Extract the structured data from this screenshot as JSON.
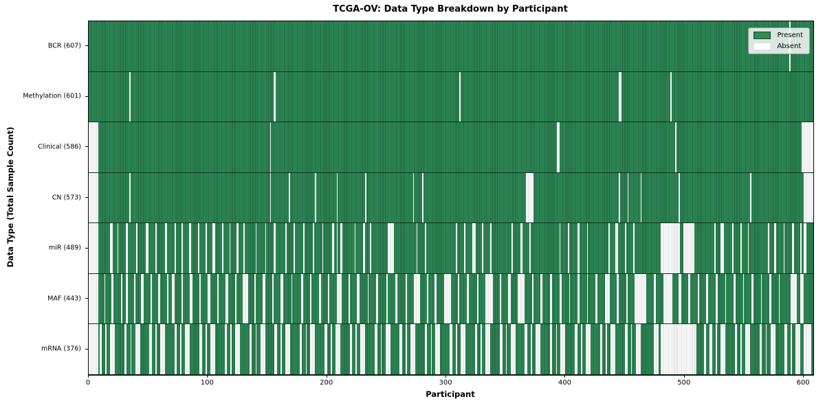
{
  "chart_data": {
    "type": "heatmap",
    "title": "TCGA-OV: Data Type Breakdown by Participant",
    "xlabel": "Participant",
    "ylabel": "Data Type (Total Sample Count)",
    "x_ticks": [
      0,
      100,
      200,
      300,
      400,
      500,
      600
    ],
    "x_max": 608,
    "total_participants": 608,
    "grid": false,
    "legend": {
      "position": "upper right",
      "entries": [
        {
          "label": "Present",
          "color": "#2e8b57"
        },
        {
          "label": "Absent",
          "color": "#ffffff"
        }
      ]
    },
    "colors": {
      "present": "#2e8b57",
      "present_edge": "#20603f",
      "absent": "#ffffff",
      "absent_edge": "#d7d7d7"
    },
    "rows": [
      {
        "label": "BCR (607)",
        "name": "BCR",
        "present_count": 607,
        "absent_count": 1,
        "absent_segments": [
          [
            588,
            589
          ]
        ]
      },
      {
        "label": "Methylation (601)",
        "name": "Methylation",
        "present_count": 601,
        "absent_count": 7,
        "absent_segments": [
          [
            34,
            35
          ],
          [
            155,
            157
          ],
          [
            311,
            312
          ],
          [
            445,
            447
          ],
          [
            488,
            489
          ]
        ]
      },
      {
        "label": "Clinical (586)",
        "name": "Clinical",
        "present_count": 586,
        "absent_count": 22,
        "absent_segments": [
          [
            0,
            8
          ],
          [
            152,
            153
          ],
          [
            393,
            395
          ],
          [
            492,
            493
          ],
          [
            598,
            608
          ]
        ]
      },
      {
        "label": "CN (573)",
        "name": "CN",
        "present_count": 573,
        "absent_count": 35,
        "absent_segments": [
          [
            0,
            8
          ],
          [
            34,
            35
          ],
          [
            152,
            153
          ],
          [
            168,
            169
          ],
          [
            190,
            191
          ],
          [
            208,
            209
          ],
          [
            232,
            233
          ],
          [
            272,
            273
          ],
          [
            280,
            281
          ],
          [
            367,
            373
          ],
          [
            445,
            446
          ],
          [
            452,
            453
          ],
          [
            463,
            464
          ],
          [
            495,
            496
          ],
          [
            555,
            556
          ],
          [
            600,
            608
          ]
        ]
      },
      {
        "label": "miR (489)",
        "name": "miR",
        "present_count": 489,
        "absent_count": 119,
        "absent_segments": [
          [
            0,
            8
          ],
          [
            18,
            20
          ],
          [
            24,
            25
          ],
          [
            31,
            33
          ],
          [
            40,
            41
          ],
          [
            48,
            50
          ],
          [
            56,
            57
          ],
          [
            64,
            66
          ],
          [
            72,
            73
          ],
          [
            78,
            79
          ],
          [
            84,
            86
          ],
          [
            92,
            93
          ],
          [
            98,
            99
          ],
          [
            104,
            106
          ],
          [
            112,
            113
          ],
          [
            118,
            119
          ],
          [
            124,
            126
          ],
          [
            130,
            131
          ],
          [
            140,
            141
          ],
          [
            148,
            149
          ],
          [
            155,
            157
          ],
          [
            165,
            166
          ],
          [
            172,
            173
          ],
          [
            180,
            181
          ],
          [
            188,
            189
          ],
          [
            196,
            197
          ],
          [
            204,
            206
          ],
          [
            208,
            209
          ],
          [
            211,
            213
          ],
          [
            223,
            224
          ],
          [
            230,
            232
          ],
          [
            236,
            237
          ],
          [
            251,
            256
          ],
          [
            275,
            276
          ],
          [
            282,
            283
          ],
          [
            308,
            309
          ],
          [
            315,
            316
          ],
          [
            322,
            325
          ],
          [
            330,
            331
          ],
          [
            337,
            338
          ],
          [
            355,
            356
          ],
          [
            362,
            364
          ],
          [
            370,
            371
          ],
          [
            395,
            396
          ],
          [
            402,
            403
          ],
          [
            410,
            412
          ],
          [
            418,
            419
          ],
          [
            436,
            437
          ],
          [
            442,
            444
          ],
          [
            450,
            451
          ],
          [
            457,
            458
          ],
          [
            480,
            496
          ],
          [
            499,
            508
          ],
          [
            525,
            526
          ],
          [
            530,
            533
          ],
          [
            540,
            541
          ],
          [
            547,
            548
          ],
          [
            553,
            554
          ],
          [
            570,
            571
          ],
          [
            575,
            577
          ],
          [
            583,
            584
          ],
          [
            590,
            592
          ],
          [
            597,
            598
          ],
          [
            600,
            602
          ]
        ]
      },
      {
        "label": "MAF (443)",
        "name": "MAF",
        "present_count": 443,
        "absent_count": 165,
        "absent_segments": [
          [
            0,
            8
          ],
          [
            13,
            14
          ],
          [
            19,
            21
          ],
          [
            27,
            28
          ],
          [
            31,
            33
          ],
          [
            38,
            39
          ],
          [
            44,
            46
          ],
          [
            52,
            53
          ],
          [
            58,
            60
          ],
          [
            66,
            67
          ],
          [
            70,
            72
          ],
          [
            78,
            79
          ],
          [
            85,
            87
          ],
          [
            93,
            94
          ],
          [
            100,
            102
          ],
          [
            108,
            109
          ],
          [
            115,
            117
          ],
          [
            123,
            124
          ],
          [
            129,
            134
          ],
          [
            139,
            140
          ],
          [
            146,
            148
          ],
          [
            154,
            155
          ],
          [
            161,
            163
          ],
          [
            170,
            171
          ],
          [
            178,
            180
          ],
          [
            186,
            187
          ],
          [
            193,
            195
          ],
          [
            201,
            202
          ],
          [
            208,
            212
          ],
          [
            218,
            219
          ],
          [
            225,
            227
          ],
          [
            234,
            235
          ],
          [
            241,
            243
          ],
          [
            250,
            251
          ],
          [
            257,
            259
          ],
          [
            266,
            267
          ],
          [
            273,
            278
          ],
          [
            284,
            285
          ],
          [
            290,
            292
          ],
          [
            298,
            304
          ],
          [
            310,
            311
          ],
          [
            317,
            319
          ],
          [
            326,
            327
          ],
          [
            333,
            339
          ],
          [
            345,
            346
          ],
          [
            352,
            354
          ],
          [
            360,
            366
          ],
          [
            372,
            373
          ],
          [
            379,
            381
          ],
          [
            387,
            389
          ],
          [
            395,
            397
          ],
          [
            403,
            404
          ],
          [
            410,
            412
          ],
          [
            418,
            419
          ],
          [
            425,
            427
          ],
          [
            433,
            437
          ],
          [
            443,
            445
          ],
          [
            451,
            452
          ],
          [
            458,
            468
          ],
          [
            474,
            476
          ],
          [
            482,
            490
          ],
          [
            495,
            497
          ],
          [
            503,
            505
          ],
          [
            511,
            512
          ],
          [
            518,
            520
          ],
          [
            526,
            528
          ],
          [
            534,
            535
          ],
          [
            541,
            543
          ],
          [
            549,
            550
          ],
          [
            556,
            558
          ],
          [
            564,
            565
          ],
          [
            571,
            573
          ],
          [
            579,
            580
          ],
          [
            589,
            594
          ],
          [
            597,
            600
          ]
        ]
      },
      {
        "label": "mRNA (376)",
        "name": "mRNA",
        "present_count": 376,
        "absent_count": 232,
        "absent_segments": [
          [
            0,
            8
          ],
          [
            9,
            11
          ],
          [
            14,
            15
          ],
          [
            18,
            22
          ],
          [
            30,
            32
          ],
          [
            35,
            36
          ],
          [
            39,
            43
          ],
          [
            51,
            53
          ],
          [
            56,
            57
          ],
          [
            60,
            64
          ],
          [
            72,
            74
          ],
          [
            77,
            78
          ],
          [
            81,
            85
          ],
          [
            93,
            95
          ],
          [
            98,
            99
          ],
          [
            102,
            106
          ],
          [
            114,
            116
          ],
          [
            119,
            120
          ],
          [
            123,
            127
          ],
          [
            135,
            137
          ],
          [
            140,
            141
          ],
          [
            144,
            148
          ],
          [
            156,
            158
          ],
          [
            161,
            162
          ],
          [
            165,
            169
          ],
          [
            177,
            179
          ],
          [
            182,
            183
          ],
          [
            186,
            190
          ],
          [
            198,
            200
          ],
          [
            203,
            204
          ],
          [
            207,
            211
          ],
          [
            219,
            221
          ],
          [
            224,
            225
          ],
          [
            228,
            232
          ],
          [
            240,
            242
          ],
          [
            245,
            246
          ],
          [
            249,
            253
          ],
          [
            261,
            263
          ],
          [
            266,
            267
          ],
          [
            270,
            274
          ],
          [
            282,
            284
          ],
          [
            287,
            288
          ],
          [
            291,
            295
          ],
          [
            303,
            305
          ],
          [
            308,
            309
          ],
          [
            312,
            316
          ],
          [
            324,
            326
          ],
          [
            329,
            330
          ],
          [
            333,
            337
          ],
          [
            345,
            347
          ],
          [
            350,
            351
          ],
          [
            354,
            358
          ],
          [
            366,
            368
          ],
          [
            371,
            372
          ],
          [
            375,
            379
          ],
          [
            387,
            389
          ],
          [
            392,
            393
          ],
          [
            396,
            400
          ],
          [
            408,
            410
          ],
          [
            413,
            414
          ],
          [
            417,
            421
          ],
          [
            429,
            431
          ],
          [
            434,
            435
          ],
          [
            438,
            442
          ],
          [
            450,
            452
          ],
          [
            455,
            456
          ],
          [
            459,
            463
          ],
          [
            474,
            478
          ],
          [
            480,
            510
          ],
          [
            516,
            518
          ],
          [
            521,
            523
          ],
          [
            526,
            527
          ],
          [
            530,
            534
          ],
          [
            542,
            544
          ],
          [
            547,
            548
          ],
          [
            551,
            555
          ],
          [
            563,
            565
          ],
          [
            568,
            569
          ],
          [
            572,
            576
          ],
          [
            584,
            586
          ],
          [
            589,
            590
          ],
          [
            593,
            597
          ],
          [
            600,
            606
          ]
        ]
      }
    ]
  }
}
